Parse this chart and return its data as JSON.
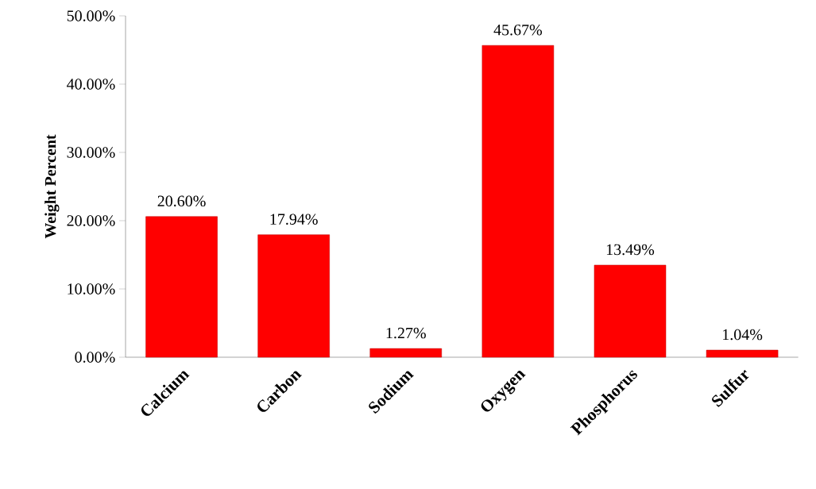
{
  "chart_data": {
    "type": "bar",
    "ylabel": "Weight Percent",
    "categories": [
      "Calcium",
      "Carbon",
      "Sodium",
      "Oxygen",
      "Phosphorus",
      "Sulfur"
    ],
    "values": [
      20.6,
      17.94,
      1.27,
      45.67,
      13.49,
      1.04
    ],
    "value_labels": [
      "20.60%",
      "17.94%",
      "1.27%",
      "45.67%",
      "13.49%",
      "1.04%"
    ],
    "color": "#ff0000",
    "ylim": [
      0,
      50
    ],
    "yticks": [
      {
        "value": 0,
        "label": "0.00%"
      },
      {
        "value": 10,
        "label": "10.00%"
      },
      {
        "value": 20,
        "label": "20.00%"
      },
      {
        "value": 30,
        "label": "30.00%"
      },
      {
        "value": 40,
        "label": "40.00%"
      },
      {
        "value": 50,
        "label": "50.00%"
      }
    ]
  }
}
